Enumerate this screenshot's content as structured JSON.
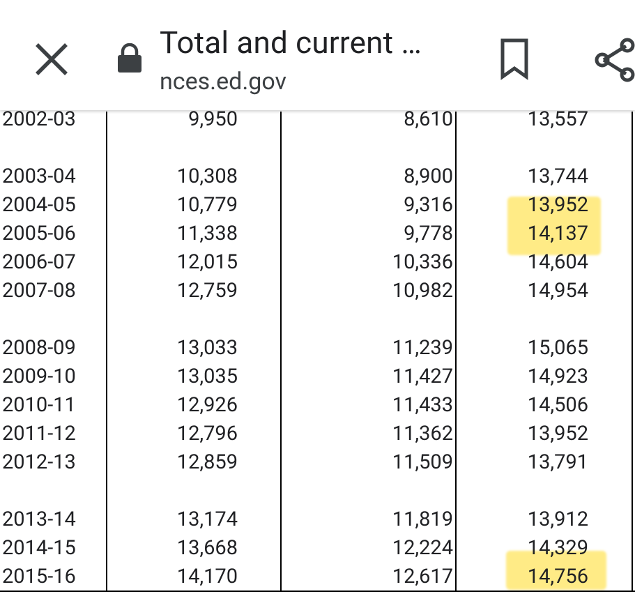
{
  "header": {
    "title": "Total and current …",
    "domain": "nces.ed.gov",
    "icons": [
      "close-icon",
      "lock-icon",
      "bookmark-icon",
      "share-icon"
    ]
  },
  "table": {
    "rows": [
      {
        "year": "2002-03",
        "total": "9,950",
        "current": "8,610",
        "constant": "13,557"
      },
      {
        "year": "2003-04",
        "total": "10,308",
        "current": "8,900",
        "constant": "13,744"
      },
      {
        "year": "2004-05",
        "total": "10,779",
        "current": "9,316",
        "constant": "13,952"
      },
      {
        "year": "2005-06",
        "total": "11,338",
        "current": "9,778",
        "constant": "14,137"
      },
      {
        "year": "2006-07",
        "total": "12,015",
        "current": "10,336",
        "constant": "14,604"
      },
      {
        "year": "2007-08",
        "total": "12,759",
        "current": "10,982",
        "constant": "14,954"
      },
      {
        "year": "2008-09",
        "total": "13,033",
        "current": "11,239",
        "constant": "15,065"
      },
      {
        "year": "2009-10",
        "total": "13,035",
        "current": "11,427",
        "constant": "14,923"
      },
      {
        "year": "2010-11",
        "total": "12,926",
        "current": "11,433",
        "constant": "14,506"
      },
      {
        "year": "2011-12",
        "total": "12,796",
        "current": "11,362",
        "constant": "13,952"
      },
      {
        "year": "2012-13",
        "total": "12,859",
        "current": "11,509",
        "constant": "13,791"
      },
      {
        "year": "2013-14",
        "total": "13,174",
        "current": "11,819",
        "constant": "13,912"
      },
      {
        "year": "2014-15",
        "total": "13,668",
        "current": "12,224",
        "constant": "14,329"
      },
      {
        "year": "2015-16",
        "total": "14,170",
        "current": "12,617",
        "constant": "14,756"
      }
    ],
    "highlight_color": "#ffde3c"
  }
}
